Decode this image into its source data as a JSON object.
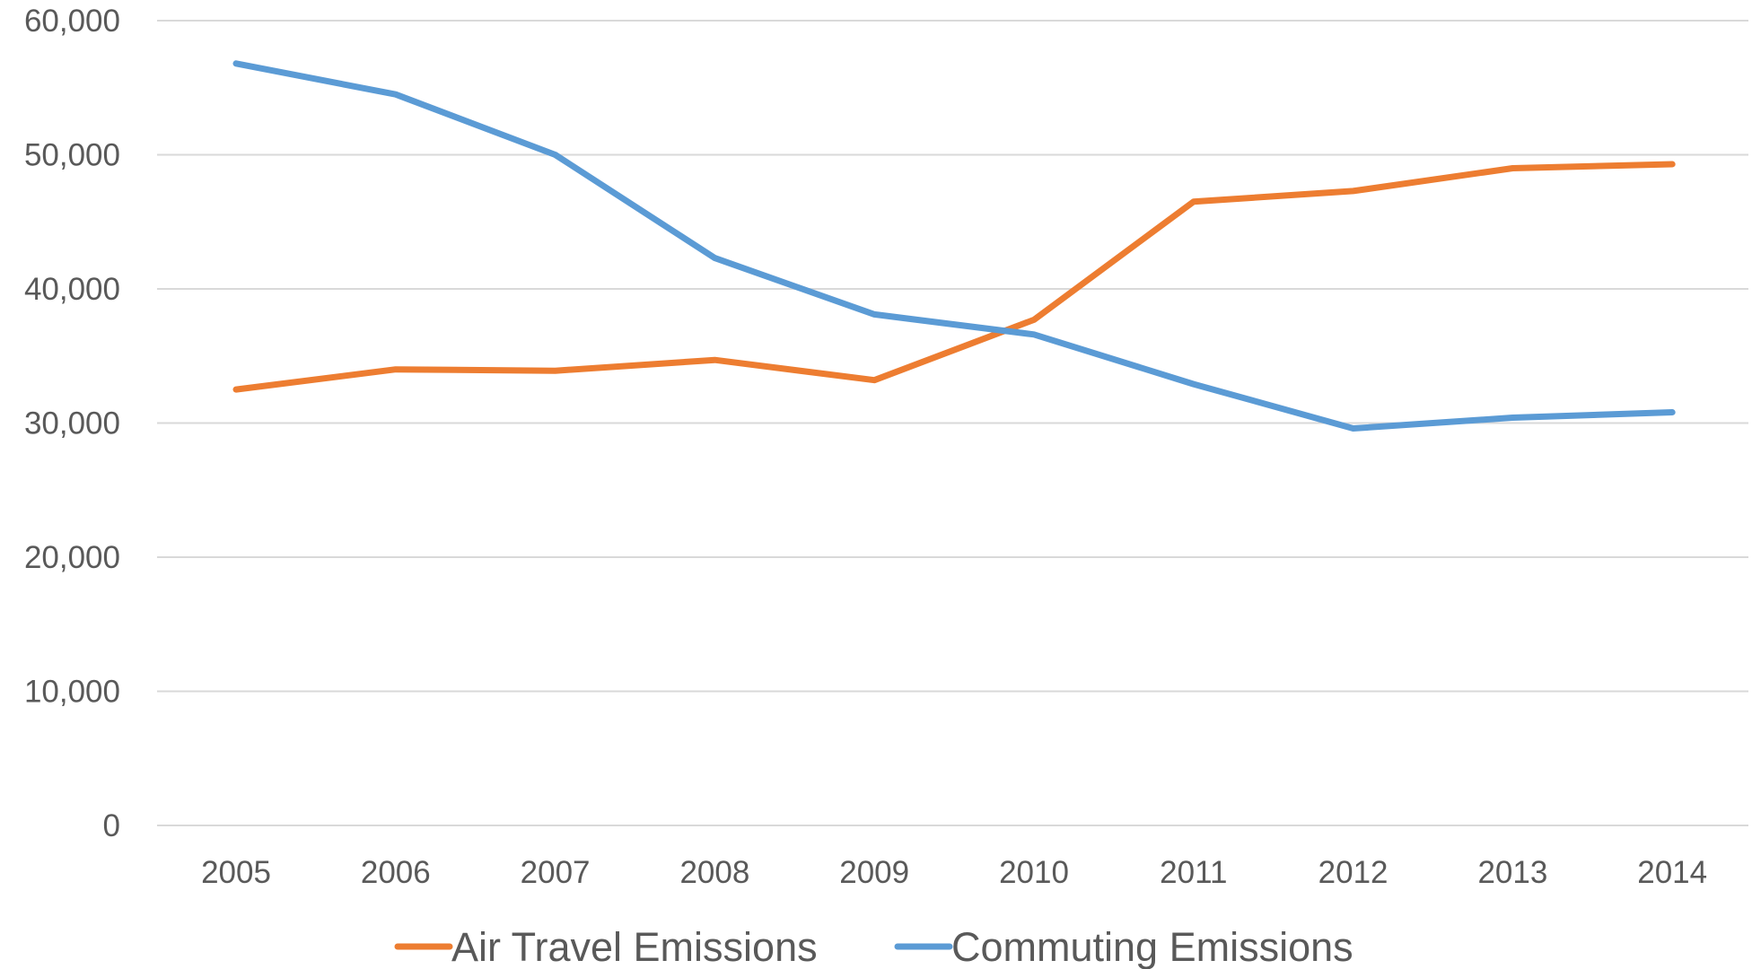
{
  "chart_data": {
    "type": "line",
    "title": "",
    "xlabel": "",
    "ylabel": "",
    "categories": [
      "2005",
      "2006",
      "2007",
      "2008",
      "2009",
      "2010",
      "2011",
      "2012",
      "2013",
      "2014"
    ],
    "series": [
      {
        "name": "Air Travel Emissions",
        "color": "#ED7D31",
        "values": [
          32500,
          34000,
          33900,
          34700,
          33200,
          37700,
          46500,
          47300,
          49000,
          49300
        ]
      },
      {
        "name": "Commuting Emissions",
        "color": "#5B9BD5",
        "values": [
          56800,
          54500,
          50000,
          42300,
          38100,
          36600,
          32900,
          29600,
          30400,
          30800
        ]
      }
    ],
    "ylim": [
      0,
      60000
    ],
    "yticks": [
      "0",
      "10,000",
      "20,000",
      "30,000",
      "40,000",
      "50,000",
      "60,000"
    ],
    "grid": true,
    "gridline_color": "#D9D9D9",
    "legend_position": "bottom"
  }
}
